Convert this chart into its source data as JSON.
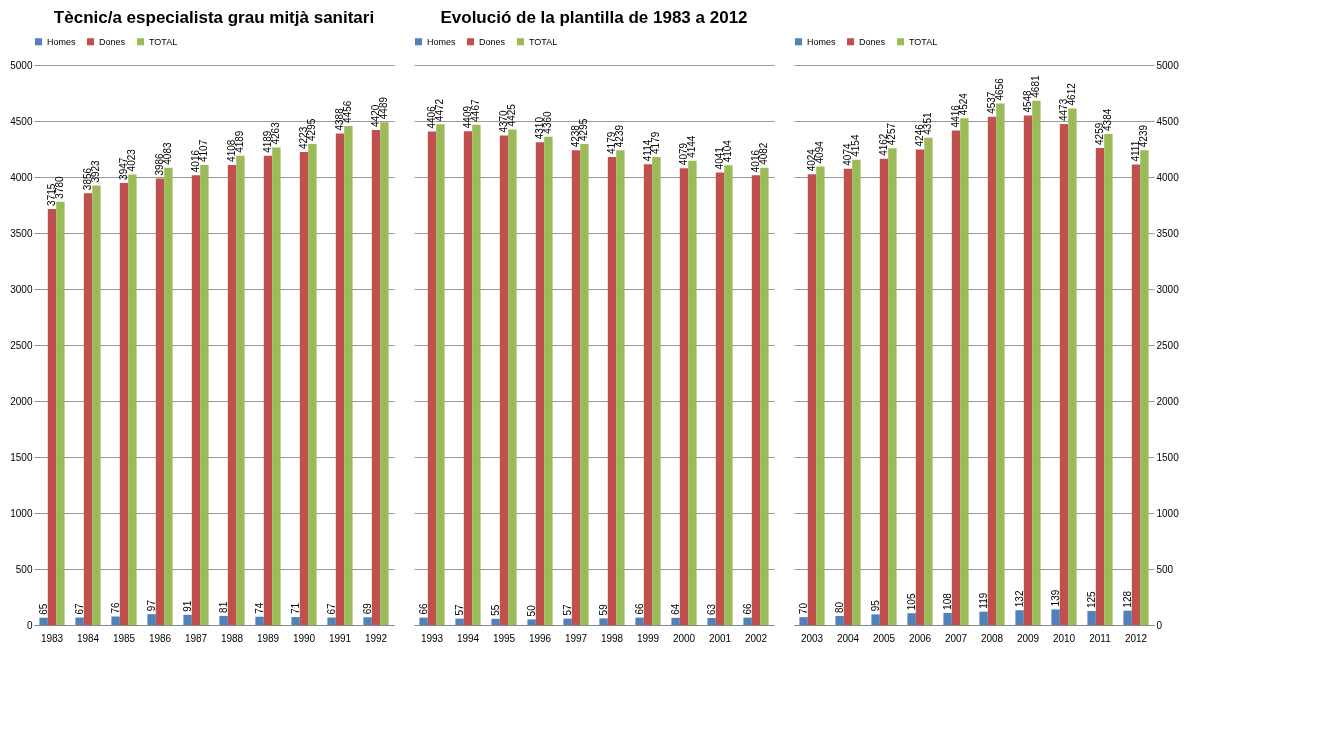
{
  "chart_data": [
    {
      "type": "bar",
      "title": "Tècnic/a especialista grau mitjà sanitari",
      "categories": [
        "1983",
        "1984",
        "1985",
        "1986",
        "1987",
        "1988",
        "1989",
        "1990",
        "1991",
        "1992"
      ],
      "series": [
        {
          "name": "Homes",
          "color": "#4f81bd",
          "values": [
            65,
            67,
            76,
            97,
            91,
            81,
            74,
            71,
            67,
            69
          ]
        },
        {
          "name": "Dones",
          "color": "#c0504d",
          "values": [
            3715,
            3856,
            3947,
            3986,
            4016,
            4108,
            4189,
            4223,
            4388,
            4420
          ]
        },
        {
          "name": "TOTAL",
          "color": "#9bbb59",
          "values": [
            3780,
            3923,
            4023,
            4083,
            4107,
            4189,
            4263,
            4295,
            4456,
            4489
          ]
        }
      ],
      "ylim": [
        0,
        5000
      ],
      "yticks": [
        0,
        500,
        1000,
        1500,
        2000,
        2500,
        3000,
        3500,
        4000,
        4500,
        5000
      ],
      "grid": "y",
      "legend": "top",
      "data_labels": true
    },
    {
      "type": "bar",
      "title": "Evolució de la plantilla de 1983 a 2012",
      "categories": [
        "1993",
        "1994",
        "1995",
        "1996",
        "1997",
        "1998",
        "1999",
        "2000",
        "2001",
        "2002"
      ],
      "series": [
        {
          "name": "Homes",
          "color": "#4f81bd",
          "values": [
            66,
            57,
            55,
            50,
            57,
            59,
            66,
            64,
            63,
            66
          ]
        },
        {
          "name": "Dones",
          "color": "#c0504d",
          "values": [
            4406,
            4409,
            4370,
            4310,
            4238,
            4179,
            4114,
            4079,
            4041,
            4016
          ]
        },
        {
          "name": "TOTAL",
          "color": "#9bbb59",
          "values": [
            4472,
            4467,
            4425,
            4360,
            4295,
            4239,
            4179,
            4144,
            4104,
            4082
          ]
        }
      ],
      "ylim": [
        0,
        5000
      ],
      "yticks": [
        0,
        500,
        1000,
        1500,
        2000,
        2500,
        3000,
        3500,
        4000,
        4500,
        5000
      ],
      "tick_labels": "x",
      "grid": "y",
      "legend": "top",
      "data_labels": true
    },
    {
      "type": "bar",
      "categories": [
        "2003",
        "2004",
        "2005",
        "2006",
        "2007",
        "2008",
        "2009",
        "2010",
        "2011",
        "2012"
      ],
      "series": [
        {
          "name": "Homes",
          "color": "#4f81bd",
          "axis": "y2",
          "values": [
            70,
            80,
            95,
            105,
            108,
            119,
            132,
            139,
            125,
            128
          ]
        },
        {
          "name": "Dones",
          "color": "#c0504d",
          "axis": "y2",
          "values": [
            4024,
            4074,
            4162,
            4246,
            4416,
            4537,
            4548,
            4473,
            4259,
            4111
          ]
        },
        {
          "name": "TOTAL",
          "color": "#9bbb59",
          "axis": "y2",
          "values": [
            4094,
            4154,
            4257,
            4351,
            4524,
            4656,
            4681,
            4612,
            4384,
            4239
          ]
        }
      ],
      "y2lim": [
        0,
        5000
      ],
      "y2ticks": [
        0,
        500,
        1000,
        1500,
        2000,
        2500,
        3000,
        3500,
        4000,
        4500,
        5000
      ],
      "grid": "y",
      "legend": "top",
      "data_labels": true
    }
  ]
}
